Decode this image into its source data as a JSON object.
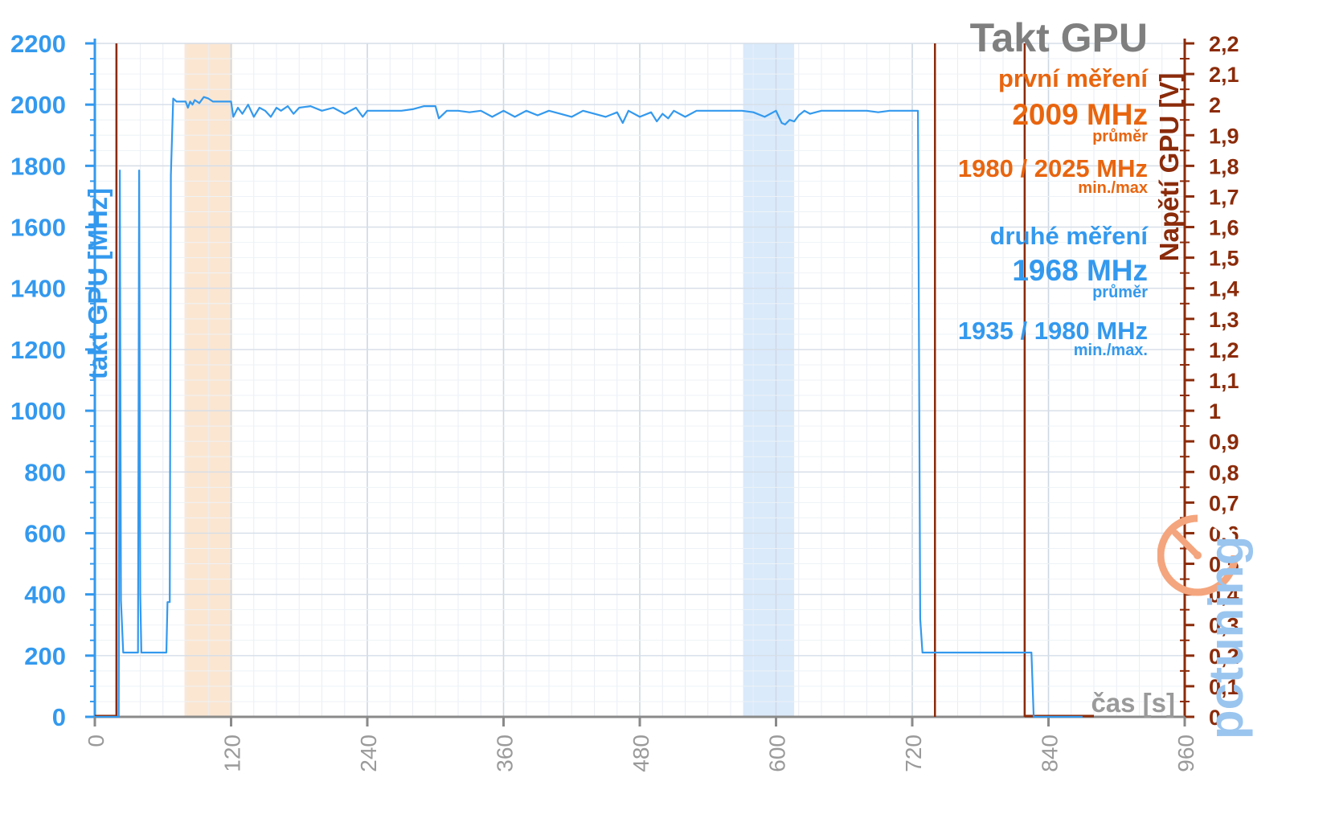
{
  "chart_data": {
    "type": "line",
    "title": "Takt GPU",
    "xlabel": "čas [s]",
    "ylabel": "takt GPU [MHz]",
    "y2label": "Napětí GPU [V]",
    "xlim": [
      0,
      960
    ],
    "ylim": [
      0,
      2200
    ],
    "y2lim": [
      0,
      2.2
    ],
    "x_ticks": [
      "0",
      "120",
      "240",
      "360",
      "480",
      "600",
      "720",
      "840",
      "960"
    ],
    "y_ticks": [
      "0",
      "200",
      "400",
      "600",
      "800",
      "1000",
      "1200",
      "1400",
      "1600",
      "1800",
      "2000",
      "2200"
    ],
    "y2_ticks": [
      "0",
      "0,1",
      "0,2",
      "0,3",
      "0,4",
      "0,5",
      "0,6",
      "0,7",
      "0,8",
      "0,9",
      "1",
      "1,1",
      "1,2",
      "1,3",
      "1,4",
      "1,5",
      "1,6",
      "1,7",
      "1,8",
      "1,9",
      "2",
      "2,1",
      "2,2"
    ],
    "grid": true,
    "colors": {
      "first_measurement": "#e8650f",
      "second_measurement": "#3399ee",
      "voltage_axis": "#8b2b0a",
      "title": "#7f7f7f",
      "grid": "#dde5ee",
      "orange_band": "#fbe3cd",
      "blue_band": "#d6e8fb"
    },
    "highlight_bands": [
      {
        "series": "první měření",
        "x": [
          79,
          121
        ]
      },
      {
        "series": "druhé měření",
        "x": [
          571,
          616
        ]
      }
    ],
    "series": [
      {
        "name": "druhé měření",
        "axis": "left",
        "x": [
          0,
          21,
          22,
          23,
          25,
          38,
          39,
          40,
          41,
          43,
          63,
          64,
          66,
          67,
          69,
          72,
          80,
          82,
          84,
          86,
          88,
          92,
          96,
          100,
          104,
          108,
          112,
          116,
          120,
          122,
          126,
          130,
          135,
          140,
          145,
          150,
          155,
          160,
          164,
          170,
          175,
          180,
          190,
          200,
          210,
          220,
          230,
          236,
          240,
          250,
          260,
          270,
          280,
          290,
          300,
          303,
          310,
          320,
          330,
          340,
          350,
          360,
          370,
          380,
          390,
          400,
          410,
          420,
          430,
          440,
          450,
          460,
          465,
          470,
          480,
          490,
          495,
          500,
          505,
          510,
          520,
          530,
          540,
          550,
          560,
          570,
          580,
          590,
          600,
          605,
          608,
          612,
          616,
          620,
          625,
          630,
          640,
          650,
          660,
          670,
          680,
          690,
          700,
          710,
          720,
          725,
          727,
          729,
          735,
          760,
          800,
          825,
          827,
          829,
          860,
          870
        ],
        "y": [
          0,
          0,
          1785,
          380,
          210,
          210,
          1785,
          400,
          210,
          210,
          210,
          375,
          375,
          1770,
          2020,
          2010,
          2010,
          1990,
          2010,
          2000,
          2015,
          2005,
          2025,
          2020,
          2010,
          2010,
          2010,
          2010,
          2010,
          1960,
          1990,
          1970,
          2000,
          1960,
          1990,
          1980,
          1960,
          1990,
          1980,
          1995,
          1970,
          1990,
          1995,
          1980,
          1990,
          1970,
          1990,
          1960,
          1980,
          1980,
          1980,
          1980,
          1985,
          1995,
          1995,
          1955,
          1980,
          1980,
          1975,
          1980,
          1960,
          1980,
          1960,
          1980,
          1965,
          1980,
          1970,
          1960,
          1980,
          1970,
          1960,
          1975,
          1940,
          1980,
          1960,
          1975,
          1945,
          1970,
          1955,
          1980,
          1960,
          1980,
          1980,
          1980,
          1980,
          1980,
          1975,
          1960,
          1980,
          1940,
          1935,
          1950,
          1945,
          1965,
          1980,
          1970,
          1980,
          1980,
          1980,
          1980,
          1980,
          1975,
          1980,
          1980,
          1980,
          1980,
          320,
          210,
          210,
          210,
          210,
          210,
          0,
          0,
          0,
          0
        ]
      },
      {
        "name": "Napětí GPU",
        "axis": "right",
        "x": [
          0,
          19,
          19.5,
          719.5,
          720,
          0,
          0,
          820,
          820
        ],
        "note": "",
        "lines_x": [
          19,
          740,
          819
        ]
      }
    ]
  },
  "annotations": {
    "title": "Takt GPU",
    "first": {
      "label": "první měření",
      "avg": "2009 MHz",
      "avg_caption": "průměr",
      "minmax": "1980 / 2025 MHz",
      "minmax_caption": "min./max"
    },
    "second": {
      "label": "druhé měření",
      "avg": "1968 MHz",
      "avg_caption": "průměr",
      "minmax": "1935 / 1980 MHz",
      "minmax_caption": "min./max."
    }
  },
  "logo": {
    "text": "pctuning"
  }
}
